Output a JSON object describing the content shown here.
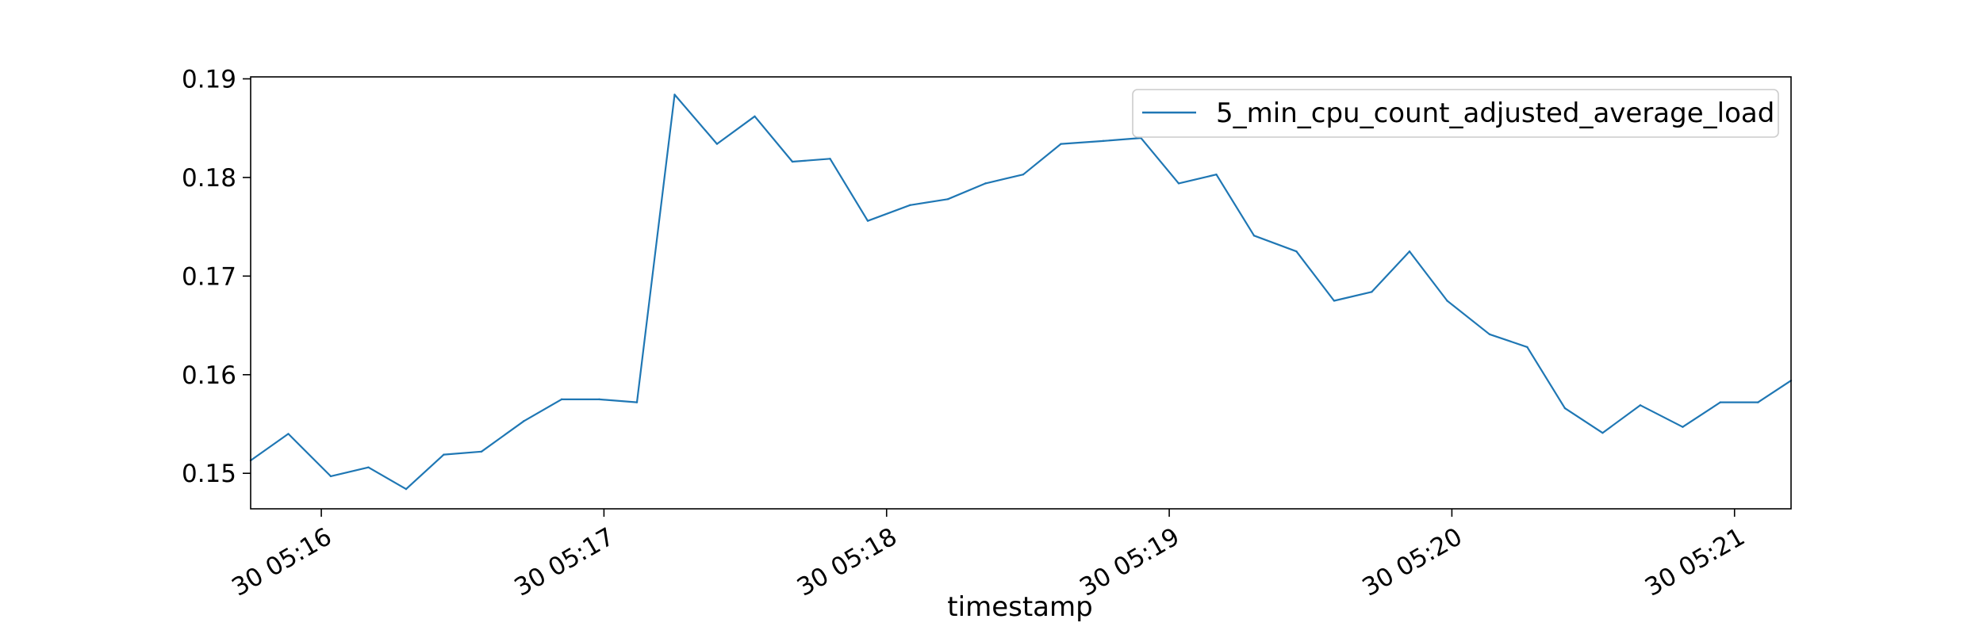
{
  "chart_data": {
    "type": "line",
    "title": "",
    "xlabel": "timestamp",
    "ylabel": "",
    "x_tick_labels": [
      "30 05:16",
      "30 05:17",
      "30 05:18",
      "30 05:19",
      "30 05:20",
      "30 05:21"
    ],
    "y_tick_labels": [
      "0.15",
      "0.16",
      "0.17",
      "0.18",
      "0.19"
    ],
    "y_ticks": [
      0.15,
      0.16,
      0.17,
      0.18,
      0.19
    ],
    "ylim": [
      0.1464,
      0.1902
    ],
    "x_range_seconds_from_05_15": [
      45,
      372
    ],
    "grid": false,
    "legend_position": "upper right",
    "series": [
      {
        "name": "5_min_cpu_count_adjusted_average_load",
        "color": "#1f77b4",
        "x": [
          45,
          53,
          62,
          70,
          78,
          86,
          94,
          103,
          111,
          119,
          127,
          135,
          144,
          152,
          160,
          168,
          176,
          185,
          193,
          201,
          209,
          217,
          226,
          234,
          242,
          250,
          258,
          267,
          275,
          283,
          291,
          299,
          308,
          316,
          324,
          332,
          340,
          349,
          357,
          365,
          372
        ],
        "y": [
          0.1513,
          0.154,
          0.1497,
          0.1506,
          0.1484,
          0.1519,
          0.1522,
          0.1553,
          0.1575,
          0.1575,
          0.1572,
          0.1884,
          0.1834,
          0.1862,
          0.1816,
          0.1819,
          0.1756,
          0.1772,
          0.1778,
          0.1794,
          0.1803,
          0.1834,
          0.1837,
          0.184,
          0.1794,
          0.1803,
          0.1741,
          0.1725,
          0.1675,
          0.1684,
          0.1725,
          0.1675,
          0.1641,
          0.1628,
          0.1566,
          0.1541,
          0.1569,
          0.1547,
          0.1572,
          0.1572,
          0.1594
        ]
      }
    ]
  }
}
